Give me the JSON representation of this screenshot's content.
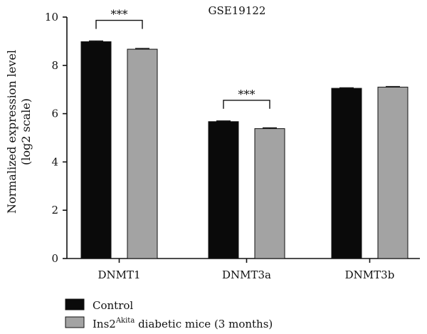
{
  "chart_data": {
    "type": "bar",
    "title": "GSE19122",
    "ylabel_line1": "Normalized expression level",
    "ylabel_line2": "(log2 scale)",
    "ylim": [
      0,
      10
    ],
    "yticks": [
      "0",
      "2",
      "4",
      "6",
      "8",
      "10"
    ],
    "categories": [
      "DNMT1",
      "DNMT3a",
      "DNMT3b"
    ],
    "series": [
      {
        "name": "Control",
        "values": [
          8.98,
          5.67,
          7.05
        ],
        "errors": [
          0.03,
          0.03,
          0.02
        ],
        "color": "#0a0a0a"
      },
      {
        "name_main": "Ins2",
        "name_sup": "Akita",
        "name_rest": " diabetic mice (3 months)",
        "values": [
          8.67,
          5.38,
          7.1
        ],
        "errors": [
          0.03,
          0.03,
          0.02
        ],
        "color": "#a3a3a3"
      }
    ],
    "significance": [
      {
        "category_index": 0,
        "label": "***"
      },
      {
        "category_index": 1,
        "label": "***"
      }
    ],
    "legend_placement": "bottom-left",
    "grid": false
  }
}
